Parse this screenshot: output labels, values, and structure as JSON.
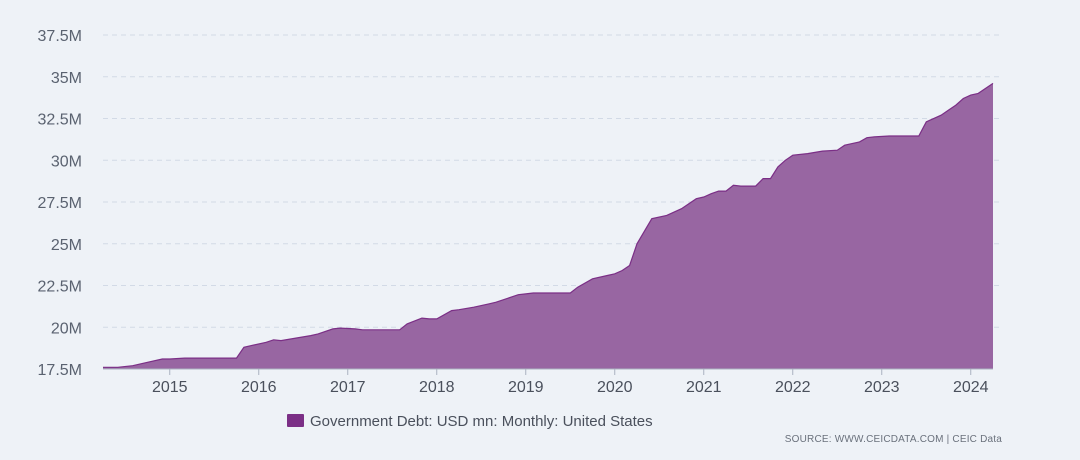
{
  "chart_data": {
    "type": "area",
    "title": "",
    "xlabel": "",
    "ylabel": "",
    "ylim": [
      17500000,
      37500000
    ],
    "y_ticks": [
      {
        "value": 17500000,
        "label": "17.5M"
      },
      {
        "value": 20000000,
        "label": "20M"
      },
      {
        "value": 22500000,
        "label": "22.5M"
      },
      {
        "value": 25000000,
        "label": "25M"
      },
      {
        "value": 27500000,
        "label": "27.5M"
      },
      {
        "value": 30000000,
        "label": "30M"
      },
      {
        "value": 32500000,
        "label": "32.5M"
      },
      {
        "value": 35000000,
        "label": "35M"
      },
      {
        "value": 37500000,
        "label": "37.5M"
      }
    ],
    "x_range": [
      "2014-04",
      "2024-04"
    ],
    "x_ticks": [
      {
        "value": "2015-01",
        "label": "2015"
      },
      {
        "value": "2016-01",
        "label": "2016"
      },
      {
        "value": "2017-01",
        "label": "2017"
      },
      {
        "value": "2018-01",
        "label": "2018"
      },
      {
        "value": "2019-01",
        "label": "2019"
      },
      {
        "value": "2020-01",
        "label": "2020"
      },
      {
        "value": "2021-01",
        "label": "2021"
      },
      {
        "value": "2022-01",
        "label": "2022"
      },
      {
        "value": "2023-01",
        "label": "2023"
      },
      {
        "value": "2024-01",
        "label": "2024"
      }
    ],
    "grid": true,
    "legend_position": "bottom-center",
    "series": [
      {
        "name": "Government Debt: USD mn: Monthly: United States",
        "color": "#7b2f86",
        "fill_color": "#9866a2",
        "points": [
          [
            "2014-04",
            17600000
          ],
          [
            "2014-06",
            17600000
          ],
          [
            "2014-08",
            17700000
          ],
          [
            "2014-10",
            17900000
          ],
          [
            "2014-12",
            18100000
          ],
          [
            "2015-01",
            18100000
          ],
          [
            "2015-03",
            18150000
          ],
          [
            "2015-06",
            18150000
          ],
          [
            "2015-09",
            18150000
          ],
          [
            "2015-10",
            18150000
          ],
          [
            "2015-11",
            18800000
          ],
          [
            "2015-12",
            18900000
          ],
          [
            "2016-02",
            19100000
          ],
          [
            "2016-03",
            19250000
          ],
          [
            "2016-04",
            19200000
          ],
          [
            "2016-06",
            19350000
          ],
          [
            "2016-08",
            19500000
          ],
          [
            "2016-09",
            19600000
          ],
          [
            "2016-11",
            19900000
          ],
          [
            "2016-12",
            19950000
          ],
          [
            "2017-02",
            19900000
          ],
          [
            "2017-03",
            19850000
          ],
          [
            "2017-04",
            19850000
          ],
          [
            "2017-06",
            19850000
          ],
          [
            "2017-08",
            19850000
          ],
          [
            "2017-09",
            20200000
          ],
          [
            "2017-11",
            20550000
          ],
          [
            "2017-12",
            20500000
          ],
          [
            "2018-01",
            20500000
          ],
          [
            "2018-03",
            21000000
          ],
          [
            "2018-04",
            21050000
          ],
          [
            "2018-06",
            21200000
          ],
          [
            "2018-08",
            21400000
          ],
          [
            "2018-09",
            21500000
          ],
          [
            "2018-11",
            21800000
          ],
          [
            "2018-12",
            21950000
          ],
          [
            "2019-01",
            22000000
          ],
          [
            "2019-02",
            22050000
          ],
          [
            "2019-03",
            22050000
          ],
          [
            "2019-05",
            22050000
          ],
          [
            "2019-07",
            22050000
          ],
          [
            "2019-08",
            22400000
          ],
          [
            "2019-10",
            22900000
          ],
          [
            "2019-12",
            23100000
          ],
          [
            "2020-01",
            23200000
          ],
          [
            "2020-02",
            23400000
          ],
          [
            "2020-03",
            23700000
          ],
          [
            "2020-04",
            25000000
          ],
          [
            "2020-06",
            26500000
          ],
          [
            "2020-08",
            26700000
          ],
          [
            "2020-10",
            27100000
          ],
          [
            "2020-12",
            27700000
          ],
          [
            "2021-01",
            27800000
          ],
          [
            "2021-02",
            28000000
          ],
          [
            "2021-03",
            28150000
          ],
          [
            "2021-04",
            28150000
          ],
          [
            "2021-05",
            28500000
          ],
          [
            "2021-06",
            28450000
          ],
          [
            "2021-08",
            28450000
          ],
          [
            "2021-09",
            28900000
          ],
          [
            "2021-10",
            28900000
          ],
          [
            "2021-11",
            29600000
          ],
          [
            "2021-12",
            30000000
          ],
          [
            "2022-01",
            30300000
          ],
          [
            "2022-03",
            30400000
          ],
          [
            "2022-05",
            30550000
          ],
          [
            "2022-07",
            30600000
          ],
          [
            "2022-08",
            30900000
          ],
          [
            "2022-10",
            31100000
          ],
          [
            "2022-11",
            31350000
          ],
          [
            "2022-12",
            31400000
          ],
          [
            "2023-02",
            31450000
          ],
          [
            "2023-04",
            31450000
          ],
          [
            "2023-06",
            31450000
          ],
          [
            "2023-07",
            32300000
          ],
          [
            "2023-09",
            32700000
          ],
          [
            "2023-10",
            33000000
          ],
          [
            "2023-11",
            33300000
          ],
          [
            "2023-12",
            33700000
          ],
          [
            "2024-01",
            33900000
          ],
          [
            "2024-02",
            34000000
          ],
          [
            "2024-03",
            34300000
          ],
          [
            "2024-04",
            34600000
          ]
        ]
      }
    ]
  },
  "legend": {
    "label": "Government Debt: USD mn: Monthly: United States",
    "swatch_color": "#7b2f86"
  },
  "source": {
    "text": "SOURCE: WWW.CEICDATA.COM | CEIC Data"
  },
  "colors": {
    "background": "#eef2f7",
    "grid": "#d2dae6",
    "area_fill": "#9866a2",
    "area_stroke": "#7b2f86",
    "axis_text": "#5a6270"
  }
}
